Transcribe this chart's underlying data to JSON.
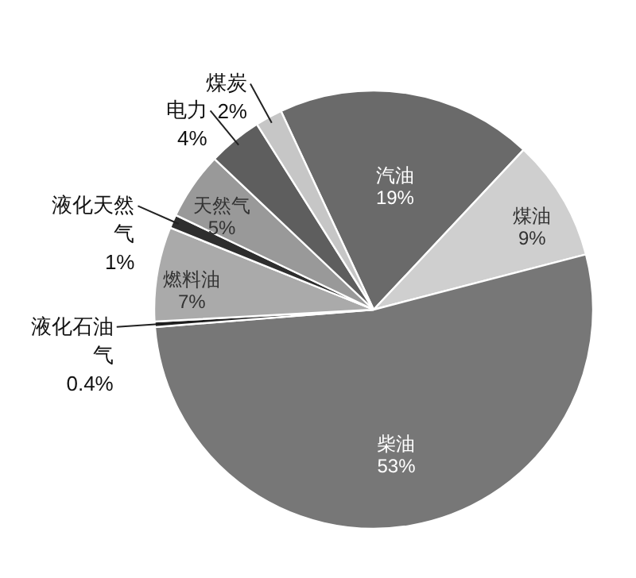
{
  "chart_data": {
    "type": "pie",
    "categories": [
      "汽油",
      "煤油",
      "柴油",
      "液化石油气",
      "燃料油",
      "液化天然气",
      "天然气",
      "电力",
      "煤炭"
    ],
    "values": [
      19,
      9,
      53,
      0.4,
      7,
      1,
      5,
      4,
      2
    ],
    "colors": [
      "#6a6a6a",
      "#cfcfcf",
      "#777777",
      "#1e1e1e",
      "#aaaaaa",
      "#2e2e2e",
      "#999999",
      "#5e5e5e",
      "#c6c6c6"
    ],
    "value_labels": [
      "19%",
      "9%",
      "53%",
      "0.4%",
      "7%",
      "1%",
      "5%",
      "4%",
      "2%"
    ]
  }
}
